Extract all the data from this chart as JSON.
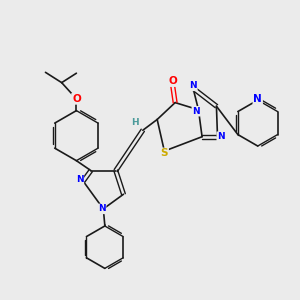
{
  "background_color": "#ebebeb",
  "bond_color": "#1a1a1a",
  "O_color": "#ff0000",
  "N_color": "#0000ff",
  "S_color": "#ccaa00",
  "H_color": "#4a9a9a",
  "figsize": [
    3.0,
    3.0
  ],
  "dpi": 100,
  "xlim": [
    0,
    10
  ],
  "ylim": [
    0,
    10
  ]
}
